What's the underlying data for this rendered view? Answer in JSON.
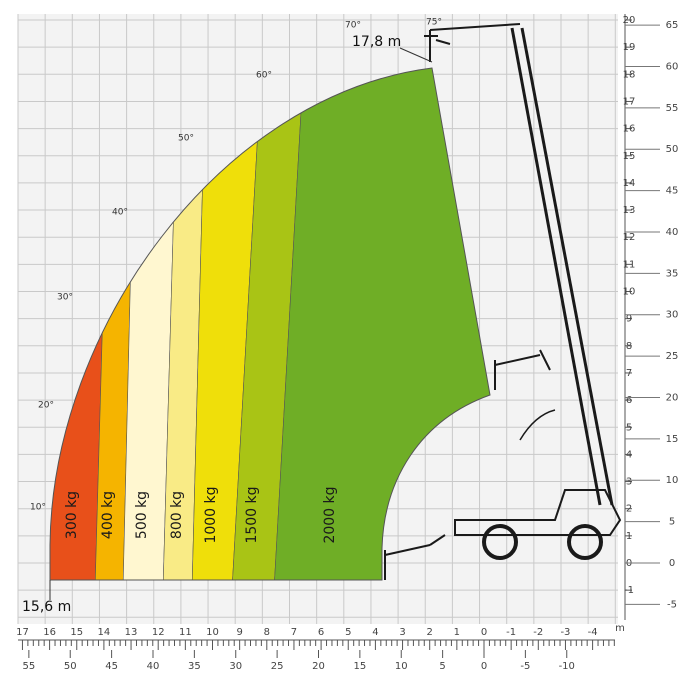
{
  "labels": {
    "max_height": "17,8 m",
    "max_reach": "15,6 m"
  },
  "zones": [
    {
      "label": "300 kg",
      "color": "#e8501a"
    },
    {
      "label": "400 kg",
      "color": "#f5b400"
    },
    {
      "label": "500 kg",
      "color": "#fff7d0"
    },
    {
      "label": "800 kg",
      "color": "#f9eb86"
    },
    {
      "label": "1000 kg",
      "color": "#efdf0a"
    },
    {
      "label": "1500 kg",
      "color": "#a9c415"
    },
    {
      "label": "2000 kg",
      "color": "#6fae26"
    }
  ],
  "angles": [
    "10°",
    "20°",
    "30°",
    "40°",
    "50°",
    "60°",
    "70°",
    "75°"
  ],
  "axes": {
    "height_m": [
      20,
      19,
      18,
      17,
      16,
      15,
      14,
      13,
      12,
      11,
      10,
      9,
      8,
      7,
      6,
      5,
      4,
      3,
      2,
      1,
      0,
      -1
    ],
    "height_ft": [
      65,
      60,
      55,
      50,
      45,
      40,
      35,
      30,
      25,
      20,
      15,
      10,
      5,
      0,
      -5
    ],
    "reach_m": [
      17,
      16,
      15,
      14,
      13,
      12,
      11,
      10,
      9,
      8,
      7,
      6,
      5,
      4,
      3,
      2,
      1,
      0,
      -1,
      -2,
      -3,
      -4
    ],
    "reach_unit": "m",
    "reach_ft": [
      55,
      50,
      45,
      40,
      35,
      30,
      25,
      20,
      15,
      10,
      5,
      0,
      -5,
      -10
    ]
  }
}
